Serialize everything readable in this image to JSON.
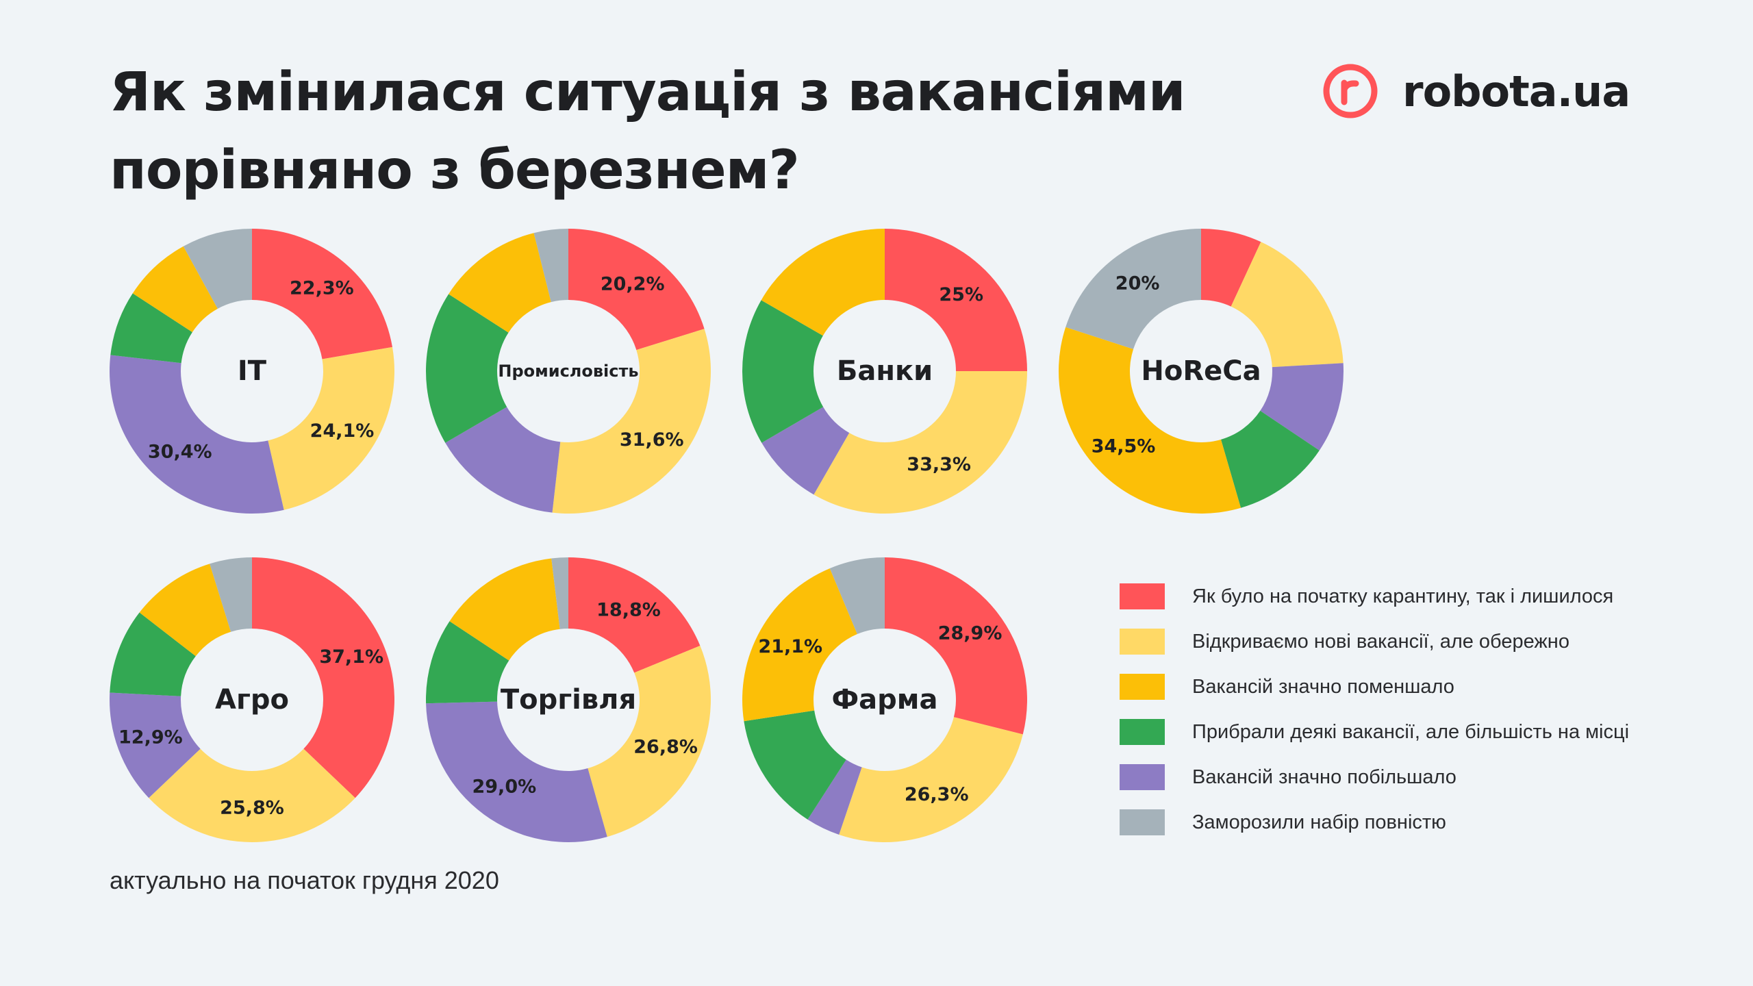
{
  "title_line1": "Як змінилася ситуація з вакансіями",
  "title_line2": "порівняно з березнем?",
  "brand": {
    "name": "robota.ua",
    "icon": "robota-logo-icon",
    "color": "#ff5458"
  },
  "footnote": "актуально на початок грудня 2020",
  "legend": [
    {
      "key": "same",
      "label": "Як було на початку карантину, так і лишилося",
      "color": "#ff5458"
    },
    {
      "key": "open",
      "label": "Відкриваємо нові вакансії, але обережно",
      "color": "#ffd966"
    },
    {
      "key": "fewer",
      "label": "Вакансій значно поменшало",
      "color": "#fcbf07"
    },
    {
      "key": "removed",
      "label": "Прибрали деякі вакансії, але більшість на місці",
      "color": "#33a853"
    },
    {
      "key": "more",
      "label": "Вакансій значно побільшало",
      "color": "#8d7cc4"
    },
    {
      "key": "frozen",
      "label": "Заморозили набір повністю",
      "color": "#a5b2ba"
    }
  ],
  "chart_data": [
    {
      "type": "pie",
      "name": "IT",
      "values": [
        22.3,
        24.1,
        30.4,
        7.4,
        7.8,
        8.0
      ],
      "labels": [
        "22,3%",
        "24,1%",
        "30,4%",
        "",
        "",
        ""
      ],
      "order": [
        "same",
        "open",
        "more",
        "removed",
        "fewer",
        "frozen"
      ]
    },
    {
      "type": "pie",
      "name": "Промисловість",
      "values": [
        20.2,
        31.6,
        14.8,
        17.5,
        12.0,
        3.9
      ],
      "labels": [
        "20,2%",
        "31,6%",
        "",
        "",
        "",
        ""
      ],
      "order": [
        "same",
        "open",
        "more",
        "removed",
        "fewer",
        "frozen"
      ]
    },
    {
      "type": "pie",
      "name": "Банки",
      "values": [
        25.0,
        33.3,
        8.3,
        16.7,
        16.7
      ],
      "labels": [
        "25%",
        "33,3%",
        "",
        "",
        ""
      ],
      "order": [
        "same",
        "open",
        "more",
        "removed",
        "fewer"
      ]
    },
    {
      "type": "pie",
      "name": "HoReCa",
      "values": [
        6.9,
        17.2,
        10.3,
        11.1,
        34.5,
        20.0
      ],
      "labels": [
        "",
        "",
        "",
        "",
        "34,5%",
        "20%"
      ],
      "order": [
        "same",
        "open",
        "more",
        "removed",
        "fewer",
        "frozen"
      ]
    },
    {
      "type": "pie",
      "name": "Агро",
      "values": [
        37.1,
        25.8,
        12.9,
        9.7,
        9.7,
        4.8
      ],
      "labels": [
        "37,1%",
        "25,8%",
        "12,9%",
        "",
        "",
        ""
      ],
      "order": [
        "same",
        "open",
        "more",
        "removed",
        "fewer",
        "frozen"
      ]
    },
    {
      "type": "pie",
      "name": "Торгівля",
      "values": [
        18.8,
        26.8,
        29.0,
        9.7,
        13.8,
        1.9
      ],
      "labels": [
        "18,8%",
        "26,8%",
        "29,0%",
        "",
        "",
        ""
      ],
      "order": [
        "same",
        "open",
        "more",
        "removed",
        "fewer",
        "frozen"
      ]
    },
    {
      "type": "pie",
      "name": "Фарма",
      "values": [
        28.9,
        26.3,
        3.9,
        13.5,
        21.1,
        6.3
      ],
      "labels": [
        "28,9%",
        "26,3%",
        "",
        "",
        "21,1%",
        ""
      ],
      "order": [
        "same",
        "open",
        "more",
        "removed",
        "fewer",
        "frozen"
      ]
    }
  ]
}
